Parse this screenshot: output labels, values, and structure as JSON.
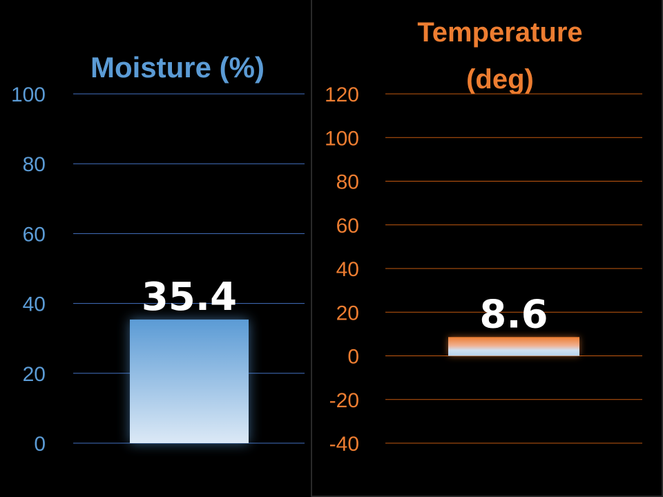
{
  "chart_data": [
    {
      "type": "bar",
      "title": "Moisture (%)",
      "categories": [
        ""
      ],
      "values": [
        35.4
      ],
      "data_labels": [
        "35.4"
      ],
      "ylim": [
        0,
        100
      ],
      "yticks": [
        "100",
        "80",
        "60",
        "40",
        "20",
        "0"
      ],
      "grid": true,
      "color": "#5b9bd5"
    },
    {
      "type": "bar",
      "title_lines": [
        "Temperature",
        "(deg)"
      ],
      "categories": [
        ""
      ],
      "values": [
        8.6
      ],
      "data_labels": [
        "8.6"
      ],
      "ylim": [
        -40,
        120
      ],
      "yticks": [
        "120",
        "100",
        "80",
        "60",
        "40",
        "20",
        "0",
        "-20",
        "-40"
      ],
      "grid": true,
      "color": "#ed7d31"
    }
  ]
}
